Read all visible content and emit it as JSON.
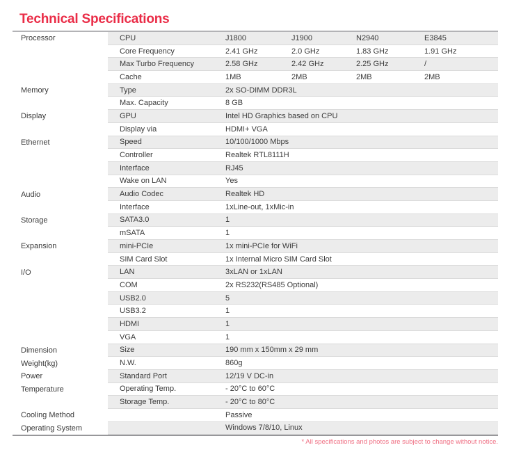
{
  "page": {
    "title": "Technical Specifications",
    "footnote": "* All specifications and photos are subject to change without notice.",
    "colors": {
      "title_red": "#ea2c47",
      "footnote_pink": "#ef6e82",
      "row_shade_gray": "#ececec",
      "table_top_border": "#b3b3b6",
      "table_bottom_border": "#97979a",
      "row_divider": "#dadada",
      "text": "#3a3a3a"
    }
  },
  "table": {
    "rows": [
      {
        "category": "Processor",
        "label": "CPU",
        "values": [
          "J1800",
          "J1900",
          "N2940",
          "E3845"
        ],
        "shaded": true
      },
      {
        "category": "",
        "label": "Core Frequency",
        "values": [
          "2.41 GHz",
          "2.0 GHz",
          "1.83 GHz",
          "1.91 GHz"
        ],
        "shaded": false
      },
      {
        "category": "",
        "label": "Max Turbo Frequency",
        "values": [
          "2.58 GHz",
          "2.42 GHz",
          "2.25 GHz",
          "/"
        ],
        "shaded": true
      },
      {
        "category": "",
        "label": "Cache",
        "values": [
          "1MB",
          "2MB",
          "2MB",
          "2MB"
        ],
        "shaded": false
      },
      {
        "category": "Memory",
        "label": "Type",
        "values": [
          "2x SO-DIMM DDR3L"
        ],
        "shaded": true
      },
      {
        "category": "",
        "label": "Max. Capacity",
        "values": [
          "8 GB"
        ],
        "shaded": false
      },
      {
        "category": "Display",
        "label": "GPU",
        "values": [
          "Intel HD Graphics based on CPU"
        ],
        "shaded": true
      },
      {
        "category": "",
        "label": "Display via",
        "values": [
          "HDMI+ VGA"
        ],
        "shaded": false
      },
      {
        "category": "Ethernet",
        "label": "Speed",
        "values": [
          "10/100/1000 Mbps"
        ],
        "shaded": true
      },
      {
        "category": "",
        "label": "Controller",
        "values": [
          "Realtek RTL8111H"
        ],
        "shaded": false
      },
      {
        "category": "",
        "label": "Interface",
        "values": [
          "RJ45"
        ],
        "shaded": true
      },
      {
        "category": "",
        "label": "Wake on LAN",
        "values": [
          "Yes"
        ],
        "shaded": false
      },
      {
        "category": "Audio",
        "label": "Audio Codec",
        "values": [
          "Realtek HD"
        ],
        "shaded": true
      },
      {
        "category": "",
        "label": "Interface",
        "values": [
          "1xLine-out, 1xMic-in"
        ],
        "shaded": false
      },
      {
        "category": "Storage",
        "label": "SATA3.0",
        "values": [
          "1"
        ],
        "shaded": true
      },
      {
        "category": "",
        "label": "mSATA",
        "values": [
          "1"
        ],
        "shaded": false
      },
      {
        "category": "Expansion",
        "label": "mini-PCIe",
        "values": [
          "1x mini-PCIe for WiFi"
        ],
        "shaded": true
      },
      {
        "category": "",
        "label": "SIM Card Slot",
        "values": [
          "1x Internal Micro SIM Card Slot"
        ],
        "shaded": false
      },
      {
        "category": "I/O",
        "label": "LAN",
        "values": [
          "3xLAN or 1xLAN"
        ],
        "shaded": true
      },
      {
        "category": "",
        "label": "COM",
        "values": [
          "2x RS232(RS485 Optional)"
        ],
        "shaded": false
      },
      {
        "category": "",
        "label": "USB2.0",
        "values": [
          "5"
        ],
        "shaded": true
      },
      {
        "category": "",
        "label": "USB3.2",
        "values": [
          "1"
        ],
        "shaded": false
      },
      {
        "category": "",
        "label": "HDMI",
        "values": [
          "1"
        ],
        "shaded": true
      },
      {
        "category": "",
        "label": "VGA",
        "values": [
          "1"
        ],
        "shaded": false
      },
      {
        "category": "Dimension",
        "label": "Size",
        "values": [
          "190 mm x 150mm x 29 mm"
        ],
        "shaded": true
      },
      {
        "category": "Weight(kg)",
        "label": "N.W.",
        "values": [
          "860g"
        ],
        "shaded": false
      },
      {
        "category": "Power",
        "label": "Standard Port",
        "values": [
          "12/19 V DC-in"
        ],
        "shaded": true
      },
      {
        "category": "Temperature",
        "label": "Operating Temp.",
        "values": [
          "- 20°C to 60°C"
        ],
        "shaded": false
      },
      {
        "category": "",
        "label": "Storage Temp.",
        "values": [
          "- 20°C to 80°C"
        ],
        "shaded": true
      },
      {
        "category": "Cooling Method",
        "label": "",
        "values": [
          "Passive"
        ],
        "shaded": false
      },
      {
        "category": "Operating System",
        "label": "",
        "values": [
          "Windows 7/8/10, Linux"
        ],
        "shaded": true
      }
    ]
  }
}
